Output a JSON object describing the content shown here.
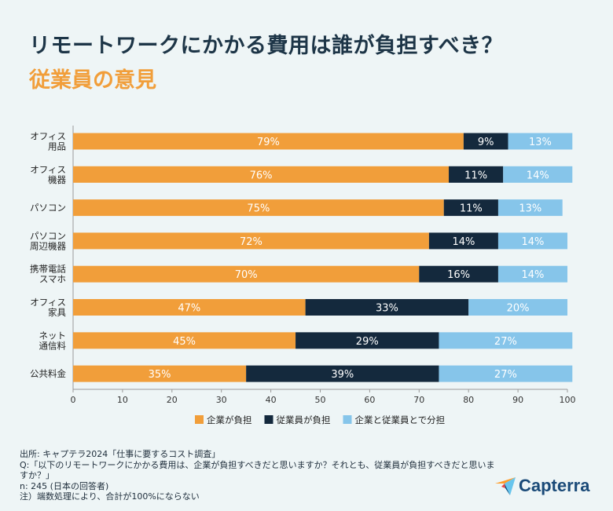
{
  "header": {
    "title": "リモートワークにかかる費用は誰が負担すべき？",
    "subtitle": "従業員の意見"
  },
  "chart_data": {
    "type": "bar",
    "orientation": "horizontal",
    "stacked": true,
    "categories": [
      [
        "オフィス",
        "用品"
      ],
      [
        "オフィス",
        "機器"
      ],
      [
        "パソコン"
      ],
      [
        "パソコン",
        "周辺機器"
      ],
      [
        "携帯電話",
        "スマホ"
      ],
      [
        "オフィス",
        "家具"
      ],
      [
        "ネット",
        "通信料"
      ],
      [
        "公共料金"
      ]
    ],
    "series": [
      {
        "name": "企業が負担",
        "color": "#f19e3a",
        "labelColor": "#ffffff",
        "values": [
          79,
          76,
          75,
          72,
          70,
          47,
          45,
          35
        ]
      },
      {
        "name": "従業員が負担",
        "color": "#14293d",
        "labelColor": "#ffffff",
        "values": [
          9,
          11,
          11,
          14,
          16,
          33,
          29,
          39
        ]
      },
      {
        "name": "企業と従業員とで分担",
        "color": "#86c5ea",
        "labelColor": "#ffffff",
        "values": [
          13,
          14,
          13,
          14,
          14,
          20,
          27,
          27
        ]
      }
    ],
    "xlim": [
      0,
      100
    ],
    "xticks": [
      0,
      10,
      20,
      30,
      40,
      50,
      60,
      70,
      80,
      90,
      100
    ],
    "value_suffix": "%",
    "legend_position": "bottom"
  },
  "footer": {
    "source": "出所: キャプテラ2024「仕事に要するコスト調査」",
    "question_line1": "Q:「以下のリモートワークにかかる費用は、企業が負担すべきだと思いますか？それとも、従業員が負担すべきだと思いま",
    "question_line2": "すか？」",
    "sample": "n: 245 (日本の回答者)",
    "note": "注）端数処理により、合計が100%にならない"
  },
  "brand": {
    "name": "Capterra",
    "logo_icon": "capterra-arrow-icon",
    "colors": [
      "#ff9d28",
      "#68c5ed",
      "#044d80",
      "#e54747"
    ]
  }
}
